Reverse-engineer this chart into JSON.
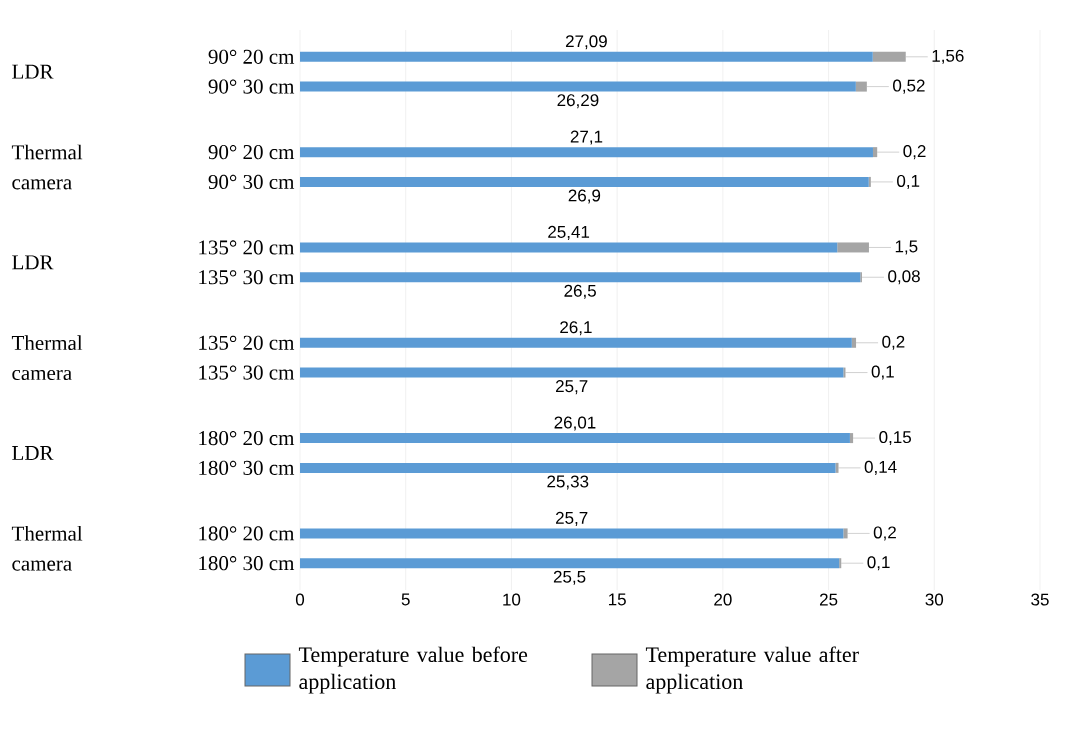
{
  "chart_data": {
    "type": "bar",
    "orientation": "horizontal",
    "stacked": true,
    "categories": [
      "90° 20 cm",
      "90° 30 cm",
      "90° 20 cm",
      "90° 30 cm",
      "135° 20 cm",
      "135° 30 cm",
      "135° 20 cm",
      "135° 30 cm",
      "180° 20 cm",
      "180° 30 cm",
      "180° 20 cm",
      "180° 30 cm"
    ],
    "series": [
      {
        "name": "Temperature value before application",
        "color": "#5b9bd5",
        "values": [
          27.09,
          26.29,
          27.1,
          26.9,
          25.41,
          26.5,
          26.1,
          25.7,
          26.01,
          25.33,
          25.7,
          25.5
        ],
        "value_labels": [
          "27,09",
          "26,29",
          "27,1",
          "26,9",
          "25,41",
          "26,5",
          "26,1",
          "25,7",
          "26,01",
          "25,33",
          "25,7",
          "25,5"
        ]
      },
      {
        "name": "Temperature value after application",
        "color": "#a5a5a5",
        "values": [
          1.56,
          0.52,
          0.2,
          0.1,
          1.5,
          0.08,
          0.2,
          0.1,
          0.15,
          0.14,
          0.2,
          0.1
        ],
        "value_labels": [
          "1,56",
          "0,52",
          "0,2",
          "0,1",
          "1,5",
          "0,08",
          "0,2",
          "0,1",
          "0,15",
          "0,14",
          "0,2",
          "0,1"
        ]
      }
    ],
    "annotations": [
      "LDR",
      "Thermal camera",
      "LDR",
      "Thermal camera",
      "LDR",
      "Thermal camera"
    ],
    "xlim": [
      0,
      35
    ],
    "xticks": [
      0,
      5,
      10,
      15,
      20,
      25,
      30,
      35
    ],
    "grid": "x",
    "legend": "bottom"
  }
}
